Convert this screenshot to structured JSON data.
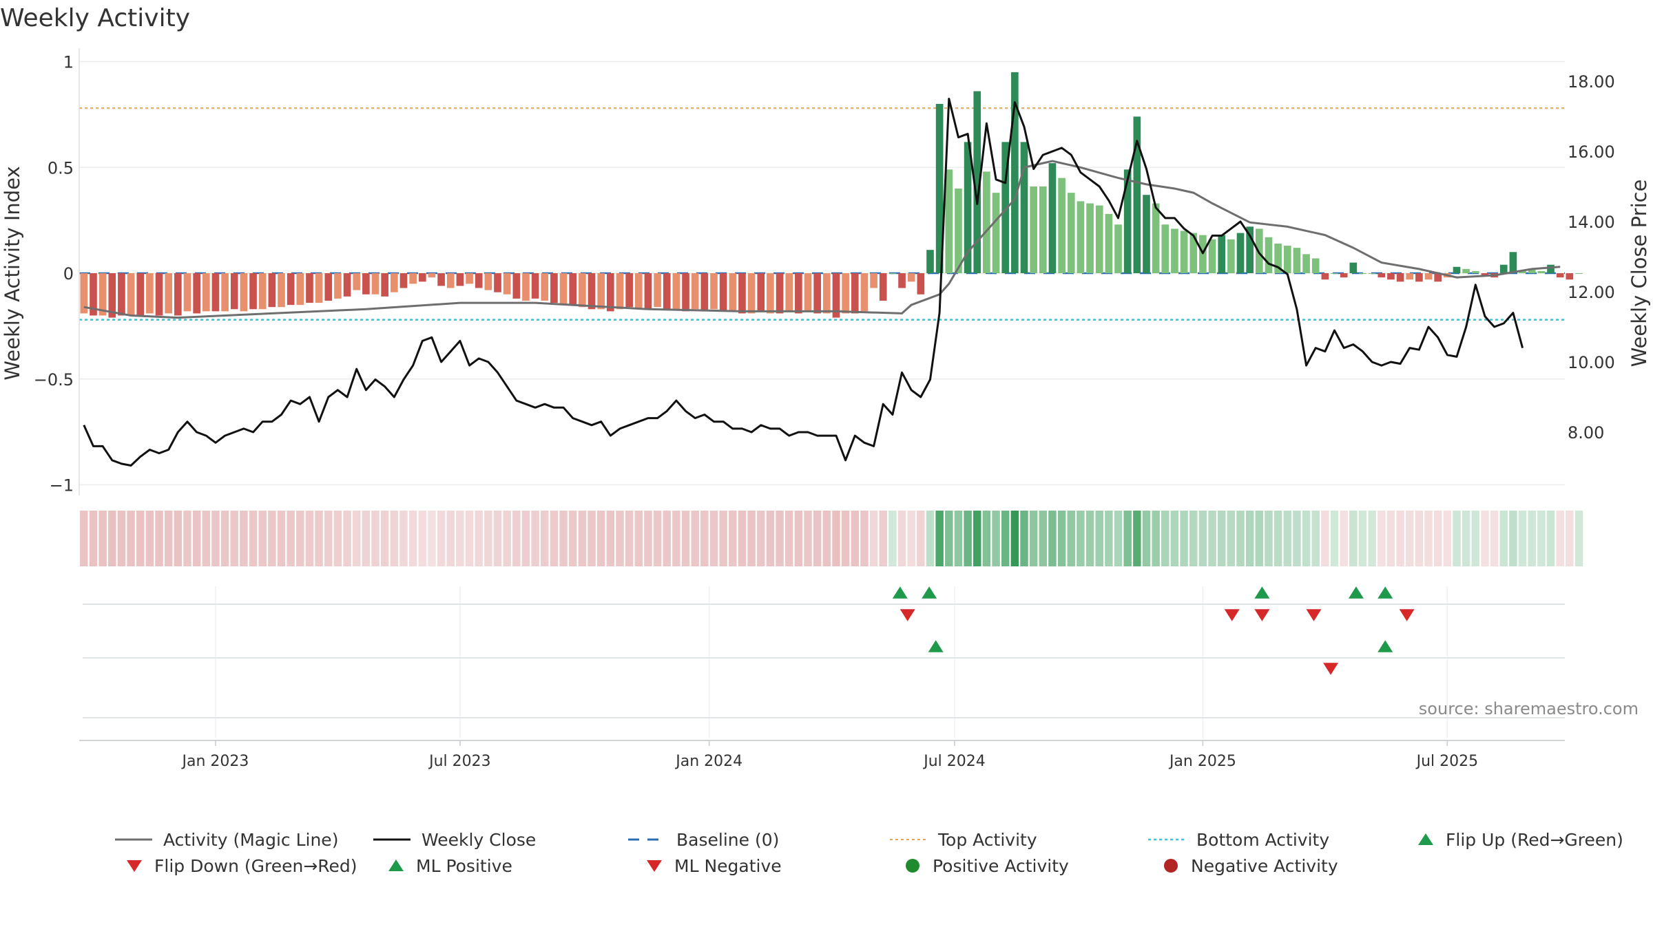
{
  "title": "Weekly Activity",
  "source": "source: sharemaestro.com",
  "colors": {
    "magic_line": "#6e6e6e",
    "close": "#111111",
    "baseline": "#2a6db5",
    "top_line": "#e2a55a",
    "bottom_line": "#3cc2d6",
    "bar_strong_pos": "#2e8b57",
    "bar_weak_pos": "#7dc17d",
    "bar_strong_neg": "#c9524f",
    "bar_weak_neg": "#e8906d",
    "flip_up": "#1e9a4a",
    "flip_down": "#d62828",
    "pos_dot": "#1f8a2e",
    "neg_dot": "#b32424"
  },
  "chart_data": {
    "type": "bar",
    "ylabel_left": "Weekly Activity Index",
    "ylabel_right": "Weekly Close Price",
    "ylim_left": [
      -1,
      1
    ],
    "ylim_right": [
      6,
      18.6
    ],
    "left_ticks": [
      "1",
      "0.5",
      "0",
      "−0.5",
      "−1"
    ],
    "left_tick_values": [
      1,
      0.5,
      0,
      -0.5,
      -1
    ],
    "right_ticks": [
      "18.00",
      "16.00",
      "14.00",
      "12.00",
      "10.00",
      "8.00"
    ],
    "right_tick_values": [
      18,
      16,
      14,
      12,
      10,
      8
    ],
    "x_ticks": [
      "Jan 2023",
      "Jul 2023",
      "Jan 2024",
      "Jul 2024",
      "Jan 2025",
      "Jul 2025"
    ],
    "x_tick_weeks": [
      14,
      40,
      66.5,
      92.6,
      119,
      145
    ],
    "n_weeks": 158,
    "top_activity": 0.78,
    "bottom_activity": -0.22,
    "grid": true,
    "activity_points": [
      [
        0,
        -0.16
      ],
      [
        5,
        -0.2
      ],
      [
        10,
        -0.21
      ],
      [
        15,
        -0.2
      ],
      [
        20,
        -0.19
      ],
      [
        30,
        -0.17
      ],
      [
        40,
        -0.14
      ],
      [
        48,
        -0.14
      ],
      [
        60,
        -0.17
      ],
      [
        70,
        -0.18
      ],
      [
        80,
        -0.18
      ],
      [
        87,
        -0.19
      ],
      [
        88,
        -0.15
      ],
      [
        91,
        -0.1
      ],
      [
        92,
        -0.05
      ],
      [
        94,
        0.1
      ],
      [
        96,
        0.2
      ],
      [
        99,
        0.35
      ],
      [
        100,
        0.5
      ],
      [
        103,
        0.53
      ],
      [
        106,
        0.5
      ],
      [
        110,
        0.45
      ],
      [
        113,
        0.42
      ],
      [
        116,
        0.4
      ],
      [
        118,
        0.38
      ],
      [
        120,
        0.33
      ],
      [
        124,
        0.24
      ],
      [
        128,
        0.22
      ],
      [
        132,
        0.18
      ],
      [
        135,
        0.12
      ],
      [
        138,
        0.05
      ],
      [
        142,
        0.02
      ],
      [
        146,
        -0.02
      ],
      [
        150,
        -0.01
      ],
      [
        154,
        0.02
      ],
      [
        157,
        0.03
      ]
    ],
    "close_points": [
      [
        0,
        8.2
      ],
      [
        1,
        7.6
      ],
      [
        2,
        7.6
      ],
      [
        3,
        7.2
      ],
      [
        4,
        7.1
      ],
      [
        5,
        7.05
      ],
      [
        6,
        7.3
      ],
      [
        7,
        7.5
      ],
      [
        8,
        7.4
      ],
      [
        9,
        7.5
      ],
      [
        10,
        8.0
      ],
      [
        11,
        8.3
      ],
      [
        12,
        8.0
      ],
      [
        13,
        7.9
      ],
      [
        14,
        7.7
      ],
      [
        15,
        7.9
      ],
      [
        16,
        8.0
      ],
      [
        17,
        8.1
      ],
      [
        18,
        8.0
      ],
      [
        19,
        8.3
      ],
      [
        20,
        8.3
      ],
      [
        21,
        8.5
      ],
      [
        22,
        8.9
      ],
      [
        23,
        8.8
      ],
      [
        24,
        9.0
      ],
      [
        25,
        8.3
      ],
      [
        26,
        9.0
      ],
      [
        27,
        9.2
      ],
      [
        28,
        9.0
      ],
      [
        29,
        9.8
      ],
      [
        30,
        9.2
      ],
      [
        31,
        9.5
      ],
      [
        32,
        9.3
      ],
      [
        33,
        9.0
      ],
      [
        34,
        9.5
      ],
      [
        35,
        9.9
      ],
      [
        36,
        10.6
      ],
      [
        37,
        10.7
      ],
      [
        38,
        10.0
      ],
      [
        39,
        10.3
      ],
      [
        40,
        10.6
      ],
      [
        41,
        9.9
      ],
      [
        42,
        10.1
      ],
      [
        43,
        10.0
      ],
      [
        44,
        9.7
      ],
      [
        45,
        9.3
      ],
      [
        46,
        8.9
      ],
      [
        47,
        8.8
      ],
      [
        48,
        8.7
      ],
      [
        49,
        8.8
      ],
      [
        50,
        8.7
      ],
      [
        51,
        8.7
      ],
      [
        52,
        8.4
      ],
      [
        53,
        8.3
      ],
      [
        54,
        8.2
      ],
      [
        55,
        8.3
      ],
      [
        56,
        7.9
      ],
      [
        57,
        8.1
      ],
      [
        58,
        8.2
      ],
      [
        59,
        8.3
      ],
      [
        60,
        8.4
      ],
      [
        61,
        8.4
      ],
      [
        62,
        8.6
      ],
      [
        63,
        8.9
      ],
      [
        64,
        8.6
      ],
      [
        65,
        8.4
      ],
      [
        66,
        8.5
      ],
      [
        67,
        8.3
      ],
      [
        68,
        8.3
      ],
      [
        69,
        8.1
      ],
      [
        70,
        8.1
      ],
      [
        71,
        8.0
      ],
      [
        72,
        8.2
      ],
      [
        73,
        8.1
      ],
      [
        74,
        8.1
      ],
      [
        75,
        7.9
      ],
      [
        76,
        8.0
      ],
      [
        77,
        8.0
      ],
      [
        78,
        7.9
      ],
      [
        79,
        7.9
      ],
      [
        80,
        7.9
      ],
      [
        81,
        7.2
      ],
      [
        82,
        7.9
      ],
      [
        83,
        7.7
      ],
      [
        84,
        7.6
      ],
      [
        85,
        8.8
      ],
      [
        86,
        8.5
      ],
      [
        87,
        9.7
      ],
      [
        88,
        9.2
      ],
      [
        89,
        9.0
      ],
      [
        90,
        9.5
      ],
      [
        91,
        11.4
      ],
      [
        92,
        17.5
      ],
      [
        93,
        16.4
      ],
      [
        94,
        16.5
      ],
      [
        95,
        14.5
      ],
      [
        96,
        16.8
      ],
      [
        97,
        15.2
      ],
      [
        98,
        15.1
      ],
      [
        99,
        17.4
      ],
      [
        100,
        16.7
      ],
      [
        101,
        15.5
      ],
      [
        102,
        15.9
      ],
      [
        103,
        16.0
      ],
      [
        104,
        16.1
      ],
      [
        105,
        15.9
      ],
      [
        106,
        15.4
      ],
      [
        107,
        15.2
      ],
      [
        108,
        15.0
      ],
      [
        109,
        14.6
      ],
      [
        110,
        14.1
      ],
      [
        111,
        15.2
      ],
      [
        112,
        16.3
      ],
      [
        113,
        15.5
      ],
      [
        114,
        14.4
      ],
      [
        115,
        14.1
      ],
      [
        116,
        14.1
      ],
      [
        117,
        13.8
      ],
      [
        118,
        13.6
      ],
      [
        119,
        13.1
      ],
      [
        120,
        13.6
      ],
      [
        121,
        13.6
      ],
      [
        122,
        13.8
      ],
      [
        123,
        14.0
      ],
      [
        124,
        13.6
      ],
      [
        125,
        13.1
      ],
      [
        126,
        12.8
      ],
      [
        127,
        12.7
      ],
      [
        128,
        12.5
      ],
      [
        129,
        11.5
      ],
      [
        130,
        9.9
      ],
      [
        131,
        10.4
      ],
      [
        132,
        10.3
      ],
      [
        133,
        10.9
      ],
      [
        134,
        10.4
      ],
      [
        135,
        10.5
      ],
      [
        136,
        10.3
      ],
      [
        137,
        10.0
      ],
      [
        138,
        9.9
      ],
      [
        139,
        10.0
      ],
      [
        140,
        9.95
      ],
      [
        141,
        10.4
      ],
      [
        142,
        10.35
      ],
      [
        143,
        11.0
      ],
      [
        144,
        10.7
      ],
      [
        145,
        10.2
      ],
      [
        146,
        10.15
      ],
      [
        147,
        11.0
      ],
      [
        148,
        12.2
      ],
      [
        149,
        11.3
      ],
      [
        150,
        11.0
      ],
      [
        151,
        11.1
      ],
      [
        152,
        11.4
      ],
      [
        153,
        10.4
      ]
    ],
    "bars": [
      [
        -0.19,
        0
      ],
      [
        -0.2,
        1
      ],
      [
        -0.2,
        0
      ],
      [
        -0.21,
        1
      ],
      [
        -0.2,
        1
      ],
      [
        -0.2,
        0
      ],
      [
        -0.2,
        1
      ],
      [
        -0.19,
        0
      ],
      [
        -0.2,
        1
      ],
      [
        -0.19,
        0
      ],
      [
        -0.2,
        1
      ],
      [
        -0.18,
        0
      ],
      [
        -0.19,
        1
      ],
      [
        -0.18,
        0
      ],
      [
        -0.18,
        1
      ],
      [
        -0.18,
        0
      ],
      [
        -0.17,
        1
      ],
      [
        -0.18,
        0
      ],
      [
        -0.17,
        1
      ],
      [
        -0.17,
        0
      ],
      [
        -0.16,
        1
      ],
      [
        -0.16,
        0
      ],
      [
        -0.15,
        1
      ],
      [
        -0.15,
        0
      ],
      [
        -0.14,
        1
      ],
      [
        -0.14,
        0
      ],
      [
        -0.13,
        1
      ],
      [
        -0.12,
        0
      ],
      [
        -0.11,
        1
      ],
      [
        -0.08,
        0
      ],
      [
        -0.1,
        1
      ],
      [
        -0.1,
        0
      ],
      [
        -0.11,
        1
      ],
      [
        -0.09,
        0
      ],
      [
        -0.07,
        1
      ],
      [
        -0.05,
        0
      ],
      [
        -0.04,
        1
      ],
      [
        -0.02,
        0
      ],
      [
        -0.06,
        1
      ],
      [
        -0.07,
        0
      ],
      [
        -0.06,
        1
      ],
      [
        -0.05,
        0
      ],
      [
        -0.07,
        1
      ],
      [
        -0.08,
        0
      ],
      [
        -0.09,
        1
      ],
      [
        -0.1,
        0
      ],
      [
        -0.12,
        1
      ],
      [
        -0.13,
        0
      ],
      [
        -0.12,
        1
      ],
      [
        -0.13,
        0
      ],
      [
        -0.14,
        1
      ],
      [
        -0.15,
        0
      ],
      [
        -0.15,
        1
      ],
      [
        -0.16,
        0
      ],
      [
        -0.17,
        1
      ],
      [
        -0.17,
        0
      ],
      [
        -0.18,
        1
      ],
      [
        -0.17,
        0
      ],
      [
        -0.16,
        1
      ],
      [
        -0.17,
        0
      ],
      [
        -0.17,
        1
      ],
      [
        -0.16,
        0
      ],
      [
        -0.17,
        1
      ],
      [
        -0.17,
        0
      ],
      [
        -0.18,
        1
      ],
      [
        -0.17,
        0
      ],
      [
        -0.18,
        1
      ],
      [
        -0.17,
        0
      ],
      [
        -0.18,
        1
      ],
      [
        -0.18,
        0
      ],
      [
        -0.19,
        1
      ],
      [
        -0.19,
        0
      ],
      [
        -0.18,
        1
      ],
      [
        -0.19,
        0
      ],
      [
        -0.19,
        1
      ],
      [
        -0.18,
        0
      ],
      [
        -0.19,
        1
      ],
      [
        -0.18,
        0
      ],
      [
        -0.19,
        1
      ],
      [
        -0.19,
        0
      ],
      [
        -0.21,
        1
      ],
      [
        -0.19,
        0
      ],
      [
        -0.19,
        1
      ],
      [
        -0.18,
        0
      ],
      [
        -0.07,
        0
      ],
      [
        -0.13,
        1
      ],
      [
        0.0,
        0
      ],
      [
        -0.07,
        1
      ],
      [
        -0.04,
        0
      ],
      [
        -0.1,
        1
      ],
      [
        0.11,
        1
      ],
      [
        0.8,
        1
      ],
      [
        0.49,
        0
      ],
      [
        0.4,
        0
      ],
      [
        0.62,
        1
      ],
      [
        0.86,
        1
      ],
      [
        0.48,
        0
      ],
      [
        0.38,
        0
      ],
      [
        0.62,
        1
      ],
      [
        0.95,
        1
      ],
      [
        0.62,
        1
      ],
      [
        0.41,
        0
      ],
      [
        0.41,
        0
      ],
      [
        0.52,
        1
      ],
      [
        0.45,
        0
      ],
      [
        0.38,
        0
      ],
      [
        0.34,
        0
      ],
      [
        0.33,
        0
      ],
      [
        0.32,
        0
      ],
      [
        0.28,
        0
      ],
      [
        0.23,
        0
      ],
      [
        0.49,
        1
      ],
      [
        0.74,
        1
      ],
      [
        0.37,
        1
      ],
      [
        0.33,
        0
      ],
      [
        0.23,
        0
      ],
      [
        0.21,
        0
      ],
      [
        0.2,
        0
      ],
      [
        0.19,
        0
      ],
      [
        0.18,
        0
      ],
      [
        0.16,
        0
      ],
      [
        0.18,
        1
      ],
      [
        0.16,
        0
      ],
      [
        0.19,
        1
      ],
      [
        0.22,
        1
      ],
      [
        0.21,
        0
      ],
      [
        0.17,
        0
      ],
      [
        0.14,
        0
      ],
      [
        0.13,
        0
      ],
      [
        0.12,
        0
      ],
      [
        0.09,
        0
      ],
      [
        0.07,
        0
      ],
      [
        -0.03,
        1
      ],
      [
        0.0,
        0
      ],
      [
        -0.02,
        1
      ],
      [
        0.05,
        1
      ],
      [
        0.0,
        0
      ],
      [
        0.0,
        0
      ],
      [
        -0.02,
        1
      ],
      [
        -0.03,
        1
      ],
      [
        -0.04,
        1
      ],
      [
        -0.03,
        0
      ],
      [
        -0.04,
        1
      ],
      [
        -0.03,
        0
      ],
      [
        -0.04,
        1
      ],
      [
        -0.02,
        0
      ],
      [
        0.03,
        1
      ],
      [
        0.02,
        0
      ],
      [
        0.01,
        0
      ],
      [
        -0.01,
        1
      ],
      [
        -0.02,
        1
      ],
      [
        0.04,
        1
      ],
      [
        0.1,
        1
      ],
      [
        0.01,
        0
      ],
      [
        0.02,
        0
      ],
      [
        0.01,
        0
      ],
      [
        0.04,
        1
      ],
      [
        -0.02,
        1
      ],
      [
        -0.03,
        1
      ],
      [
        0.0,
        0
      ]
    ],
    "flip_up_weeks": [
      86.8,
      89.9,
      125.3,
      135.3,
      138.4
    ],
    "flip_down_weeks": [
      87.6,
      122.1,
      125.3,
      130.8,
      140.7
    ],
    "ml_positive_weeks": [
      90.6,
      138.4
    ],
    "ml_negative_weeks": [
      132.6
    ]
  },
  "legend": {
    "items": [
      {
        "label": "Activity (Magic Line)",
        "symbol": "line-solid-gray"
      },
      {
        "label": "Weekly Close",
        "symbol": "line-solid-black"
      },
      {
        "label": "Baseline (0)",
        "symbol": "line-dashed-blue"
      },
      {
        "label": "Top Activity",
        "symbol": "line-dotted-orange"
      },
      {
        "label": "Bottom Activity",
        "symbol": "line-dotted-cyan"
      },
      {
        "label": "Flip Up (Red→Green)",
        "symbol": "triangle-up-green"
      },
      {
        "label": "Flip Down (Green→Red)",
        "symbol": "triangle-down-red"
      },
      {
        "label": "ML Positive",
        "symbol": "triangle-up-green"
      },
      {
        "label": "ML Negative",
        "symbol": "triangle-down-red"
      },
      {
        "label": "Positive Activity",
        "symbol": "circle-green"
      },
      {
        "label": "Negative Activity",
        "symbol": "circle-red"
      }
    ]
  }
}
